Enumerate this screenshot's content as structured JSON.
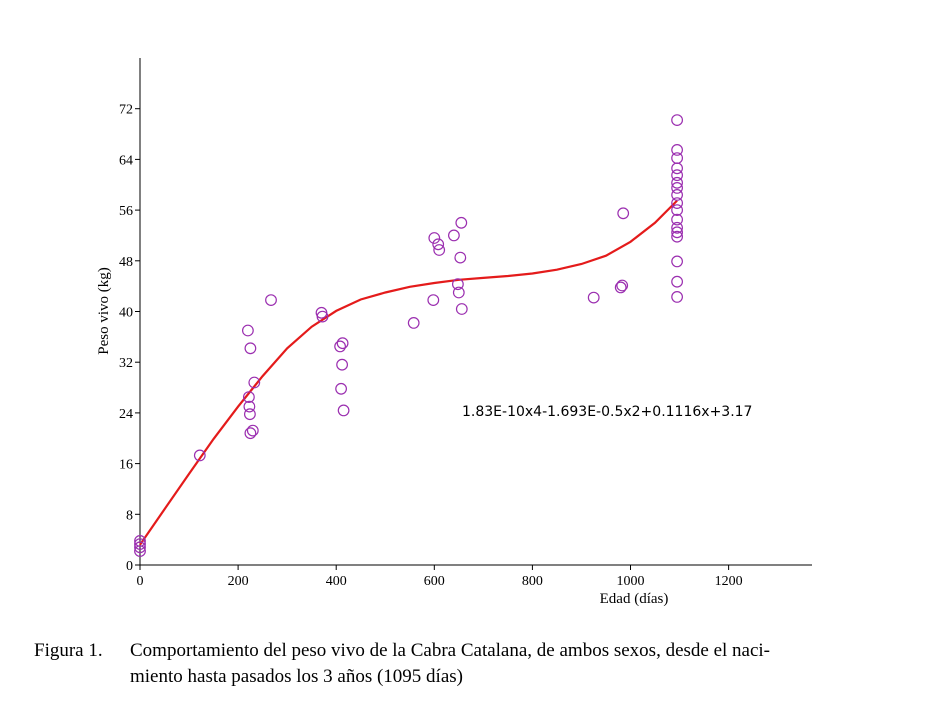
{
  "chart_data": {
    "type": "scatter",
    "xlabel": "Edad (días)",
    "ylabel": "Peso vivo (kg)",
    "xlim": [
      0,
      1370
    ],
    "ylim": [
      0,
      80
    ],
    "xticks": [
      0,
      200,
      400,
      600,
      800,
      1000,
      1200
    ],
    "yticks": [
      0,
      8,
      16,
      24,
      32,
      40,
      48,
      56,
      64,
      72
    ],
    "grid": false,
    "colors": {
      "points": "#9b2fb0",
      "curve": "#e41b1b"
    },
    "points": [
      [
        0,
        2.2
      ],
      [
        0,
        2.8
      ],
      [
        0,
        3.3
      ],
      [
        0,
        3.8
      ],
      [
        122,
        17.3
      ],
      [
        220,
        37
      ],
      [
        222,
        26.5
      ],
      [
        223,
        25
      ],
      [
        224,
        23.8
      ],
      [
        225,
        20.8
      ],
      [
        225,
        34.2
      ],
      [
        230,
        21.2
      ],
      [
        233,
        28.8
      ],
      [
        267,
        41.8
      ],
      [
        370,
        39.8
      ],
      [
        372,
        39.2
      ],
      [
        408,
        34.5
      ],
      [
        410,
        27.8
      ],
      [
        412,
        31.6
      ],
      [
        413,
        35
      ],
      [
        415,
        24.4
      ],
      [
        558,
        38.2
      ],
      [
        598,
        41.8
      ],
      [
        600,
        51.6
      ],
      [
        608,
        50.6
      ],
      [
        610,
        49.7
      ],
      [
        640,
        52
      ],
      [
        648,
        44.3
      ],
      [
        650,
        43
      ],
      [
        653,
        48.5
      ],
      [
        655,
        54
      ],
      [
        656,
        40.4
      ],
      [
        925,
        42.2
      ],
      [
        980,
        43.8
      ],
      [
        983,
        44.1
      ],
      [
        985,
        55.5
      ],
      [
        1095,
        42.3
      ],
      [
        1095,
        44.7
      ],
      [
        1095,
        47.9
      ],
      [
        1095,
        51.8
      ],
      [
        1095,
        52.5
      ],
      [
        1095,
        53.2
      ],
      [
        1095,
        54.5
      ],
      [
        1095,
        56
      ],
      [
        1095,
        57.1
      ],
      [
        1095,
        58.4
      ],
      [
        1095,
        59.5
      ],
      [
        1095,
        60.3
      ],
      [
        1095,
        61.5
      ],
      [
        1095,
        62.6
      ],
      [
        1095,
        64.2
      ],
      [
        1095,
        65.5
      ],
      [
        1095,
        70.2
      ]
    ],
    "curve": {
      "label": "1.83E-10x4-1.693E-0.5x2+0.1116x+3.17",
      "x": [
        0,
        50,
        100,
        150,
        200,
        250,
        300,
        350,
        400,
        450,
        500,
        550,
        600,
        650,
        700,
        750,
        800,
        850,
        900,
        950,
        1000,
        1050,
        1095
      ],
      "y": [
        3.2,
        8.8,
        14.4,
        19.9,
        25,
        29.8,
        34.2,
        37.6,
        40.1,
        41.9,
        43,
        43.9,
        44.5,
        45,
        45.3,
        45.6,
        46,
        46.6,
        47.5,
        48.8,
        51,
        54,
        57.5
      ]
    }
  },
  "caption": {
    "label": "Figura 1.",
    "line1": "Comportamiento del peso vivo de la Cabra Catalana, de ambos sexos, desde el naci-",
    "line2": "miento hasta pasados los 3 años (1095 días)"
  }
}
